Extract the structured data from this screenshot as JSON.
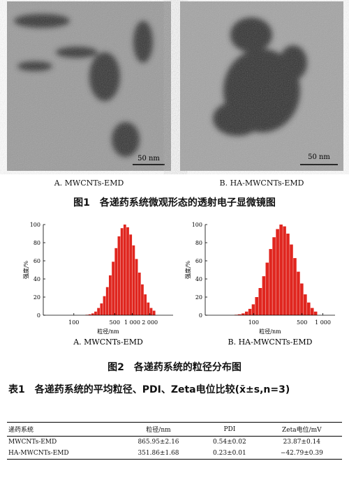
{
  "figure1": {
    "images": [
      {
        "caption": "A. MWCNTs-EMD",
        "scale": "50 nm"
      },
      {
        "caption": "B. HA-MWCNTs-EMD",
        "scale": "50 nm"
      }
    ],
    "caption": "图1　各递药系统微观形态的透射电子显微镜图"
  },
  "figure2": {
    "charts": [
      {
        "type": "histogram",
        "caption": "A. MWCNTs-EMD",
        "xlabel": "粒径/nm",
        "ylabel": "强度/%",
        "color": "#e0261f",
        "log_x": true,
        "bins": [
          158,
          178,
          200,
          224,
          251,
          282,
          316,
          355,
          398,
          447,
          501,
          562,
          631,
          708,
          794,
          891,
          1000,
          1122,
          1259,
          1413,
          1585,
          1778,
          1995,
          2239,
          2512
        ],
        "counts": [
          0.5,
          1,
          2,
          4,
          8,
          13,
          21,
          31,
          44,
          59,
          74,
          87,
          96,
          100,
          97,
          89,
          77,
          62,
          47,
          34,
          23,
          14,
          8,
          5
        ],
        "xlim": [
          30,
          5000
        ],
        "xticks": [
          100,
          500,
          {
            "value": 1000,
            "label": "1 000"
          },
          {
            "value": 2000,
            "label": "2 000"
          }
        ],
        "ylim": [
          0,
          100
        ],
        "yticks": [
          0,
          20,
          40,
          60,
          80,
          100
        ]
      },
      {
        "type": "histogram",
        "caption": "B. HA-MWCNTs-EMD",
        "xlabel": "粒径/nm",
        "ylabel": "强度/%",
        "color": "#e0261f",
        "log_x": true,
        "bins": [
          53,
          59,
          67,
          75,
          84,
          94,
          105,
          118,
          133,
          149,
          167,
          187,
          210,
          236,
          265,
          297,
          333,
          374,
          420,
          471,
          528,
          593,
          665,
          746,
          837
        ],
        "counts": [
          0.5,
          1,
          2,
          4,
          7,
          12,
          20,
          30,
          43,
          58,
          73,
          86,
          95,
          100,
          98,
          90,
          78,
          63,
          48,
          35,
          23,
          14,
          8,
          4
        ],
        "xlim": [
          20,
          1500
        ],
        "xticks": [
          100,
          500,
          {
            "value": 1000,
            "label": "1 000"
          }
        ],
        "ylim": [
          0,
          100
        ],
        "yticks": [
          0,
          20,
          40,
          60,
          80,
          100
        ]
      }
    ],
    "caption": "图2　各递药系统的粒径分布图"
  },
  "table1": {
    "title": "表1　各递药系统的平均粒径、PDI、Zeta电位比较(x̄±s,n=3)",
    "header": [
      "递药系统",
      "粒径/nm",
      "PDI",
      "Zeta电位/mV"
    ],
    "rows": [
      [
        "MWCNTs-EMD",
        "865.95±2.16",
        "0.54±0.02",
        "23.87±0.14"
      ],
      [
        "HA-MWCNTs-EMD",
        "351.86±1.68",
        "0.23±0.01",
        "−42.79±0.39"
      ]
    ]
  }
}
